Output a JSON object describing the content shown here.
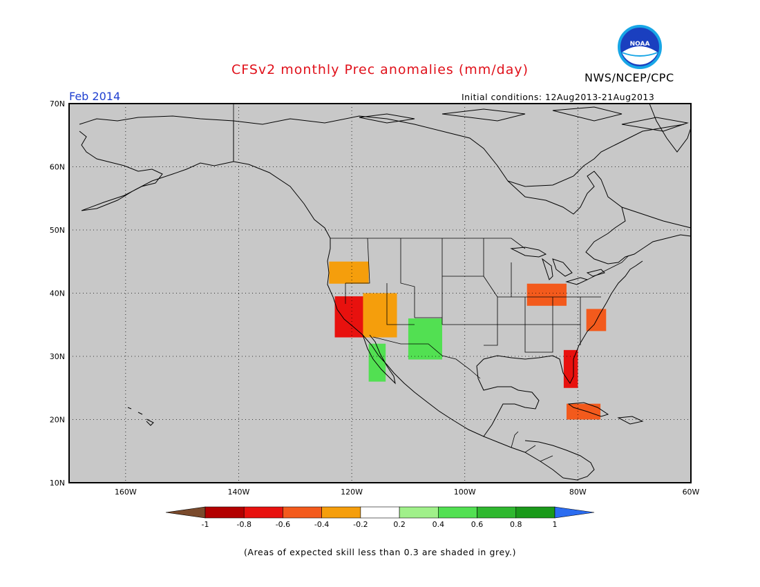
{
  "title": "CFSv2 monthly Prec anomalies (mm/day)",
  "agency": "NWS/NCEP/CPC",
  "logo_text": "NOAA",
  "valid_month": "Feb 2014",
  "initial_conditions": "Initial conditions: 12Aug2013-21Aug2013",
  "footnote": "(Areas of expected skill less than 0.3 are shaded in grey.)",
  "map": {
    "lon_range": [
      -170,
      -60
    ],
    "lat_range": [
      10,
      70
    ],
    "lat_labels": [
      "70N",
      "60N",
      "50N",
      "40N",
      "30N",
      "20N",
      "10N"
    ],
    "lon_labels": [
      "160W",
      "140W",
      "120W",
      "100W",
      "80W",
      "60W"
    ],
    "grid": "dotted",
    "background_color": "#c8c8c8"
  },
  "colorbar": {
    "labels": [
      "-1",
      "-0.8",
      "-0.6",
      "-0.4",
      "-0.2",
      "0.2",
      "0.4",
      "0.6",
      "0.8",
      "1"
    ],
    "colors": [
      "#7a4a2c",
      "#b30000",
      "#e8110e",
      "#f35a1c",
      "#f59e0c",
      "#ffffff",
      "#a0f08a",
      "#52e052",
      "#2fb82f",
      "#1a9a1a",
      "#2b6cf0"
    ]
  },
  "anomaly_regions": [
    {
      "name": "Oregon",
      "lon": [
        -124,
        -117
      ],
      "lat": [
        41.5,
        45
      ],
      "level": "-0.4"
    },
    {
      "name": "California coast",
      "lon": [
        -123,
        -116
      ],
      "lat": [
        33,
        39.5
      ],
      "level": "-0.8"
    },
    {
      "name": "Nevada/Arizona",
      "lon": [
        -118,
        -112
      ],
      "lat": [
        33,
        40
      ],
      "level": "-0.4"
    },
    {
      "name": "New Mexico / Texas",
      "lon": [
        -110,
        -104
      ],
      "lat": [
        29.5,
        36
      ],
      "level": "0.4"
    },
    {
      "name": "Baja California",
      "lon": [
        -117,
        -114
      ],
      "lat": [
        26,
        32
      ],
      "level": "0.4"
    },
    {
      "name": "Ohio Valley",
      "lon": [
        -89,
        -82
      ],
      "lat": [
        38,
        41.5
      ],
      "level": "-0.6"
    },
    {
      "name": "Mid-Atlantic",
      "lon": [
        -78.5,
        -75
      ],
      "lat": [
        34,
        37.5
      ],
      "level": "-0.6"
    },
    {
      "name": "Florida",
      "lon": [
        -82.5,
        -80
      ],
      "lat": [
        25,
        31
      ],
      "level": "-0.8"
    },
    {
      "name": "Cuba",
      "lon": [
        -82,
        -76
      ],
      "lat": [
        20,
        22.5
      ],
      "level": "-0.6"
    }
  ]
}
